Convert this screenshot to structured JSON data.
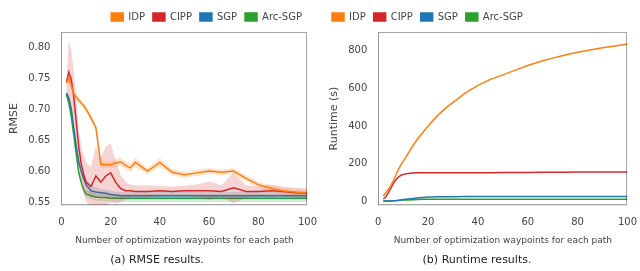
{
  "chart_data": [
    {
      "type": "line",
      "ylabel": "RMSE",
      "xlabel": "Number of optimization waypoints for each path",
      "caption": "(a) RMSE results.",
      "x": [
        2,
        3,
        4,
        5,
        6,
        7,
        8,
        9,
        10,
        12,
        14,
        16,
        18,
        20,
        22,
        24,
        26,
        28,
        30,
        35,
        40,
        45,
        50,
        55,
        60,
        65,
        70,
        75,
        80,
        85,
        90,
        95,
        100
      ],
      "series": [
        {
          "name": "IDP",
          "color": "#ff7f0e",
          "values": [
            0.743,
            0.75,
            0.738,
            0.725,
            0.72,
            0.715,
            0.71,
            0.706,
            0.7,
            0.686,
            0.67,
            0.611,
            0.61,
            0.61,
            0.613,
            0.615,
            0.609,
            0.605,
            0.614,
            0.6,
            0.614,
            0.598,
            0.594,
            0.597,
            0.6,
            0.598,
            0.6,
            0.588,
            0.578,
            0.572,
            0.568,
            0.566,
            0.565
          ],
          "std": [
            0.005,
            0.008,
            0.006,
            0.005,
            0.005,
            0.005,
            0.005,
            0.005,
            0.005,
            0.005,
            0.005,
            0.005,
            0.005,
            0.005,
            0.007,
            0.007,
            0.007,
            0.007,
            0.008,
            0.005,
            0.007,
            0.005,
            0.005,
            0.005,
            0.005,
            0.005,
            0.005,
            0.005,
            0.005,
            0.005,
            0.005,
            0.005,
            0.005
          ]
        },
        {
          "name": "CIPP",
          "color": "#d62728",
          "values": [
            0.743,
            0.76,
            0.748,
            0.72,
            0.68,
            0.64,
            0.612,
            0.595,
            0.582,
            0.575,
            0.592,
            0.582,
            0.592,
            0.597,
            0.582,
            0.572,
            0.568,
            0.568,
            0.567,
            0.567,
            0.568,
            0.567,
            0.568,
            0.568,
            0.568,
            0.567,
            0.573,
            0.567,
            0.567,
            0.568,
            0.567,
            0.565,
            0.564
          ],
          "std": [
            0.005,
            0.05,
            0.048,
            0.04,
            0.035,
            0.028,
            0.028,
            0.032,
            0.032,
            0.032,
            0.048,
            0.04,
            0.048,
            0.048,
            0.035,
            0.022,
            0.015,
            0.01,
            0.01,
            0.01,
            0.008,
            0.008,
            0.008,
            0.01,
            0.015,
            0.01,
            0.025,
            0.01,
            0.008,
            0.01,
            0.008,
            0.008,
            0.008
          ]
        },
        {
          "name": "SGP",
          "color": "#1f77b4",
          "values": [
            0.726,
            0.718,
            0.7,
            0.67,
            0.64,
            0.615,
            0.6,
            0.588,
            0.578,
            0.568,
            0.566,
            0.565,
            0.564,
            0.562,
            0.561,
            0.56,
            0.56,
            0.56,
            0.56,
            0.56,
            0.56,
            0.56,
            0.56,
            0.56,
            0.56,
            0.56,
            0.56,
            0.56,
            0.56,
            0.56,
            0.56,
            0.56,
            0.56
          ],
          "std": [
            0.006,
            0.006,
            0.006,
            0.006,
            0.008,
            0.008,
            0.008,
            0.008,
            0.01,
            0.01,
            0.008,
            0.006,
            0.006,
            0.006,
            0.006,
            0.006,
            0.006,
            0.006,
            0.006,
            0.006,
            0.006,
            0.006,
            0.006,
            0.006,
            0.006,
            0.006,
            0.006,
            0.006,
            0.006,
            0.006,
            0.006,
            0.006,
            0.006
          ]
        },
        {
          "name": "Arc-SGP",
          "color": "#2ca02c",
          "values": [
            0.724,
            0.71,
            0.688,
            0.658,
            0.628,
            0.598,
            0.582,
            0.57,
            0.563,
            0.56,
            0.558,
            0.557,
            0.557,
            0.556,
            0.556,
            0.556,
            0.556,
            0.556,
            0.556,
            0.556,
            0.556,
            0.556,
            0.556,
            0.556,
            0.556,
            0.556,
            0.556,
            0.556,
            0.556,
            0.556,
            0.556,
            0.556,
            0.556
          ],
          "std": [
            0.006,
            0.006,
            0.006,
            0.006,
            0.006,
            0.006,
            0.006,
            0.006,
            0.006,
            0.006,
            0.006,
            0.006,
            0.006,
            0.006,
            0.006,
            0.006,
            0.006,
            0.006,
            0.006,
            0.006,
            0.006,
            0.006,
            0.006,
            0.006,
            0.006,
            0.006,
            0.006,
            0.006,
            0.006,
            0.006,
            0.006,
            0.006,
            0.006
          ]
        }
      ],
      "xlim": [
        0,
        100
      ],
      "xticks": [
        0,
        20,
        40,
        60,
        80,
        100
      ],
      "ylim": [
        0.545,
        0.825
      ],
      "yticks": [
        0.55,
        {
          "value": 0.6,
          "label": "0.60"
        },
        0.65,
        {
          "value": 0.7,
          "label": "0.70"
        },
        0.75,
        {
          "value": 0.8,
          "label": "0.80"
        }
      ],
      "grid": false,
      "legend": "upper right"
    },
    {
      "type": "line",
      "ylabel": "Runtime (s)",
      "xlabel": "Number of optimization waypoints for each path",
      "caption": "(b) Runtime results.",
      "x": [
        2,
        3,
        4,
        5,
        6,
        7,
        8,
        9,
        10,
        12,
        14,
        16,
        18,
        20,
        22,
        24,
        26,
        28,
        30,
        35,
        40,
        45,
        50,
        55,
        60,
        65,
        70,
        75,
        80,
        85,
        90,
        95,
        100
      ],
      "series": [
        {
          "name": "IDP",
          "color": "#ff7f0e",
          "values": [
            28,
            45,
            62,
            82,
            108,
            138,
            166,
            192,
            212,
            255,
            298,
            335,
            368,
            400,
            430,
            458,
            483,
            506,
            526,
            576,
            616,
            648,
            672,
            697,
            722,
            743,
            761,
            778,
            792,
            804,
            816,
            826,
            836
          ]
        },
        {
          "name": "CIPP",
          "color": "#d62728",
          "values": [
            12,
            22,
            44,
            68,
            94,
            113,
            127,
            137,
            143,
            148,
            150,
            151,
            151,
            151,
            152,
            152,
            152,
            152,
            152,
            152,
            152,
            152,
            153,
            153,
            153,
            154,
            154,
            154,
            155,
            155,
            155,
            155,
            155
          ]
        },
        {
          "name": "SGP",
          "color": "#1f77b4",
          "values": [
            0.5,
            0.8,
            1.2,
            1.8,
            2.5,
            3.5,
            5,
            7,
            9,
            12,
            15,
            18,
            20,
            22,
            23,
            24,
            24,
            24,
            24,
            25,
            25,
            25,
            25,
            25,
            25,
            25,
            25,
            25,
            25,
            25,
            25,
            25,
            25
          ]
        },
        {
          "name": "Arc-SGP",
          "color": "#2ca02c",
          "values": [
            0.5,
            0.8,
            1.0,
            1.5,
            2,
            3,
            4,
            5,
            6,
            7,
            8,
            9,
            10,
            10,
            10,
            10,
            10,
            10,
            10,
            10,
            10,
            10,
            10,
            10,
            10,
            10,
            10,
            10,
            10,
            10,
            10,
            10,
            10
          ]
        }
      ],
      "xlim": [
        0,
        100
      ],
      "xticks": [
        0,
        20,
        40,
        60,
        80,
        100
      ],
      "ylim": [
        -20,
        900
      ],
      "yticks": [
        0,
        200,
        400,
        600,
        800
      ],
      "grid": false,
      "legend": "upper left"
    }
  ]
}
